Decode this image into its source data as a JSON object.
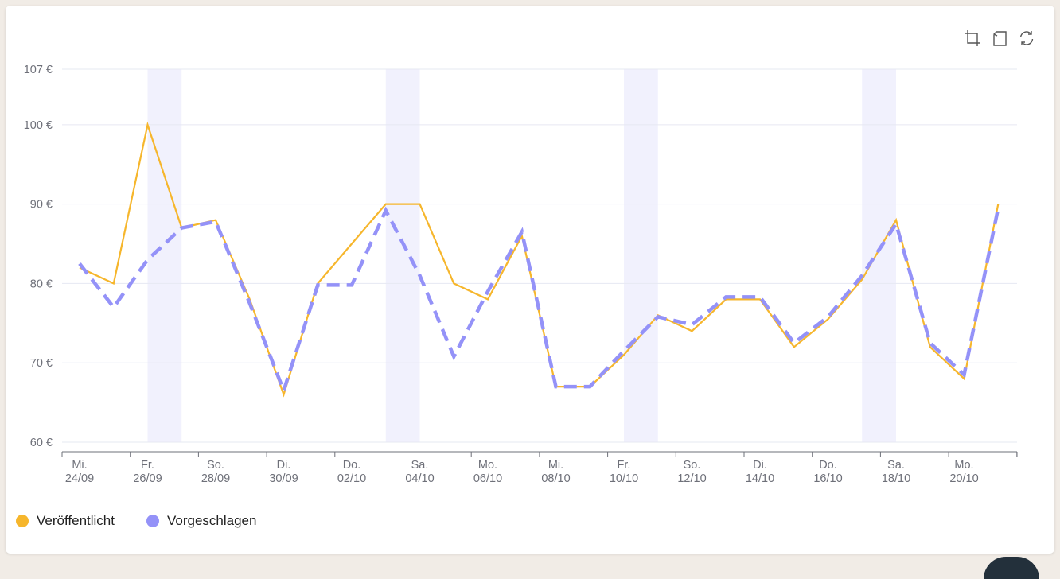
{
  "toolbar": {
    "items": [
      {
        "icon": "crop-zoom-icon"
      },
      {
        "icon": "zoom-reset-icon"
      },
      {
        "icon": "refresh-icon"
      }
    ]
  },
  "colors": {
    "published": "#f6b62c",
    "suggested": "#9492f8",
    "weekend_band": "#f1f1fd",
    "grid": "#e6e8f2",
    "axis": "#6e7079"
  },
  "chart_data": {
    "type": "line",
    "x": [
      "24/09",
      "25/09",
      "26/09",
      "27/09",
      "28/09",
      "29/09",
      "30/09",
      "01/10",
      "02/10",
      "03/10",
      "04/10",
      "05/10",
      "06/10",
      "07/10",
      "08/10",
      "09/10",
      "10/10",
      "11/10",
      "12/10",
      "13/10",
      "14/10",
      "15/10",
      "16/10",
      "17/10",
      "18/10",
      "19/10",
      "20/10",
      "21/10"
    ],
    "x_tick_labels": [
      {
        "day": "Mi.",
        "date": "24/09"
      },
      {
        "day": "Fr.",
        "date": "26/09"
      },
      {
        "day": "So.",
        "date": "28/09"
      },
      {
        "day": "Di.",
        "date": "30/09"
      },
      {
        "day": "Do.",
        "date": "02/10"
      },
      {
        "day": "Sa.",
        "date": "04/10"
      },
      {
        "day": "Mo.",
        "date": "06/10"
      },
      {
        "day": "Mi.",
        "date": "08/10"
      },
      {
        "day": "Fr.",
        "date": "10/10"
      },
      {
        "day": "So.",
        "date": "12/10"
      },
      {
        "day": "Di.",
        "date": "14/10"
      },
      {
        "day": "Do.",
        "date": "16/10"
      },
      {
        "day": "Sa.",
        "date": "18/10"
      },
      {
        "day": "Mo.",
        "date": "20/10"
      }
    ],
    "y_ticks": [
      60,
      70,
      80,
      90,
      100,
      107
    ],
    "y_tick_labels": [
      "60 €",
      "70 €",
      "80 €",
      "90 €",
      "100 €",
      "107 €"
    ],
    "ylim": [
      60,
      107
    ],
    "grid": true,
    "highlight_bands": [
      {
        "from": "26/09",
        "to": "27/09"
      },
      {
        "from": "03/10",
        "to": "04/10"
      },
      {
        "from": "10/10",
        "to": "11/10"
      },
      {
        "from": "17/10",
        "to": "18/10"
      }
    ],
    "series": [
      {
        "name": "Veröffentlicht",
        "style": "solid",
        "values": [
          82,
          80,
          100,
          87,
          88,
          78,
          66,
          80,
          85,
          90,
          90,
          80,
          78,
          86,
          67,
          67,
          71,
          76,
          74,
          78,
          78,
          72,
          75.5,
          80.5,
          88,
          72,
          68,
          90
        ]
      },
      {
        "name": "Vorgeschlagen",
        "style": "dashed",
        "values": [
          82.5,
          77,
          83,
          87,
          87.8,
          77.5,
          66.5,
          79.8,
          79.8,
          89.2,
          81,
          70.8,
          79,
          86.5,
          67,
          67,
          71.5,
          75.8,
          74.8,
          78.3,
          78.3,
          72.5,
          75.8,
          81,
          87.5,
          72.5,
          68.5,
          89.5
        ]
      }
    ],
    "legend_position": "bottom-left"
  },
  "legend": {
    "items": [
      {
        "label": "Veröffentlicht"
      },
      {
        "label": "Vorgeschlagen"
      }
    ]
  }
}
